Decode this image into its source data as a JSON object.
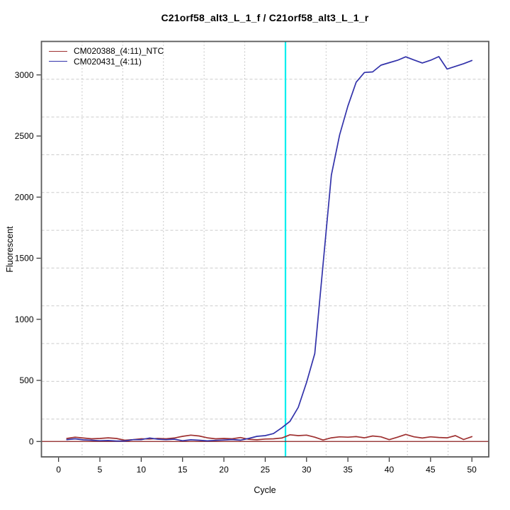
{
  "chart_data": {
    "type": "line",
    "title": "C21orf58_alt3_L_1_f / C21orf58_alt3_L_1_r",
    "xlabel": "Cycle",
    "ylabel": "Fluorescent",
    "x_ticks": [
      0,
      5,
      10,
      15,
      20,
      25,
      30,
      35,
      40,
      45,
      50
    ],
    "y_ticks": [
      0,
      500,
      1000,
      1500,
      2000,
      2500,
      3000
    ],
    "xlim": [
      -2.07,
      52.04
    ],
    "ylim": [
      -126,
      3274
    ],
    "grid_divisions": 11,
    "grid_v_style": "dotted",
    "grid_h_style": "dashed",
    "x": [
      1,
      2,
      3,
      4,
      5,
      6,
      7,
      8,
      9,
      10,
      11,
      12,
      13,
      14,
      15,
      16,
      17,
      18,
      19,
      20,
      21,
      22,
      23,
      24,
      25,
      26,
      27,
      28,
      29,
      30,
      31,
      32,
      33,
      34,
      35,
      36,
      37,
      38,
      39,
      40,
      41,
      42,
      43,
      44,
      45,
      46,
      47,
      48,
      49,
      50
    ],
    "series": [
      {
        "name": "CM020388_(4:11)_NTC",
        "color": "#9e3030",
        "values": [
          25,
          35,
          28,
          22,
          25,
          30,
          25,
          10,
          15,
          22,
          20,
          25,
          22,
          28,
          42,
          52,
          45,
          30,
          22,
          25,
          22,
          32,
          18,
          14,
          20,
          22,
          28,
          55,
          48,
          52,
          35,
          12,
          30,
          38,
          35,
          40,
          30,
          45,
          38,
          15,
          35,
          58,
          38,
          28,
          38,
          33,
          30,
          48,
          16,
          40
        ]
      },
      {
        "name": "CM020431_(4:11)",
        "color": "#3232aa",
        "values": [
          15,
          22,
          13,
          10,
          6,
          8,
          4,
          4,
          15,
          15,
          28,
          19,
          15,
          19,
          6,
          14,
          10,
          5,
          9,
          12,
          16,
          11,
          25,
          42,
          48,
          65,
          112,
          165,
          280,
          483,
          720,
          1450,
          2180,
          2510,
          2745,
          2940,
          3020,
          3025,
          3080,
          3100,
          3120,
          3148,
          3122,
          3098,
          3120,
          3150,
          3048,
          3070,
          3092,
          3118
        ]
      }
    ],
    "threshold_line": {
      "y": 0,
      "color": "#8b1e1e"
    },
    "ct_line": {
      "x": 27.45,
      "color": "#00eeee"
    },
    "colors": {
      "grid_v": "#b9b9b9",
      "grid_h": "#cbcbcb",
      "box": "#5a5a5a",
      "tick": "#2e2e2e"
    },
    "legend_position": "top-left",
    "grid": "on"
  }
}
